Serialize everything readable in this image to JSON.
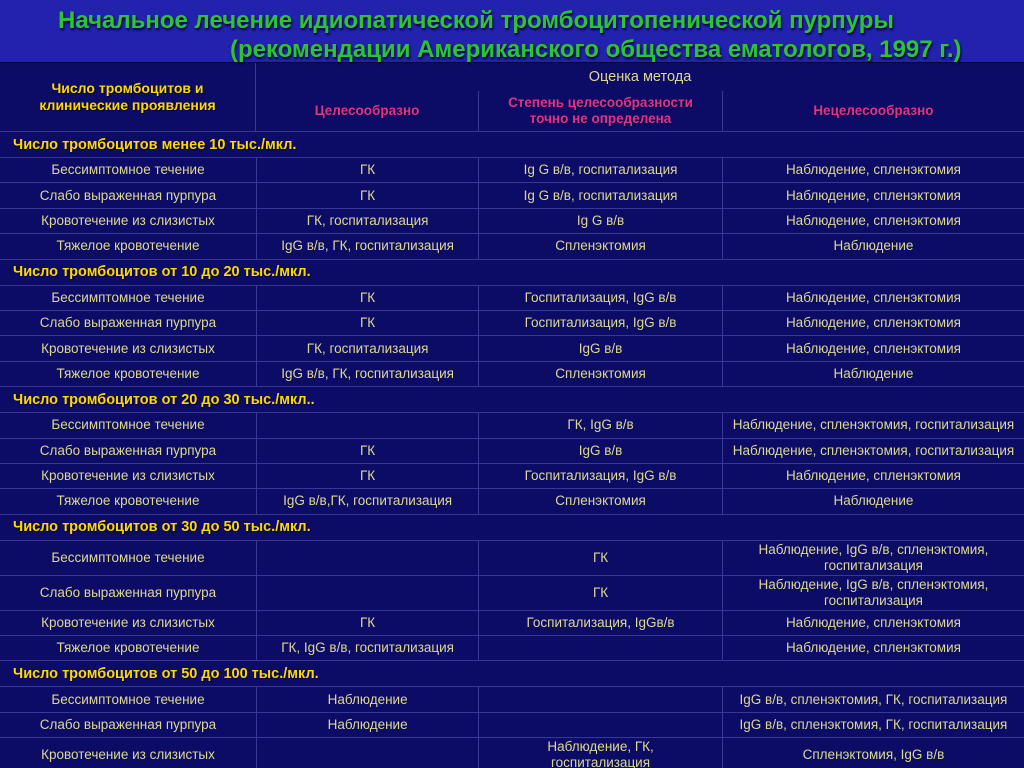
{
  "slide": {
    "title_line1": "Начальное лечение идиопатической тромбоцитопенической пурпуры",
    "title_line2": "(рекомендации Американского общества ематологов, 1997 г.)"
  },
  "table": {
    "corner_header": "Число тромбоцитов и\nклинические проявления",
    "group_header": "Оценка метода",
    "column_headers": [
      "Целесообразно",
      "Степень целесообразности\nточно не определена",
      "Нецелесообразно"
    ],
    "sections": [
      {
        "header": "Число тромбоцитов менее 10 тыс./мкл.",
        "rows": [
          {
            "cells": [
              "Бессимптомное течение",
              "ГК",
              "Ig G в/в, госпитализация",
              "Наблюдение, спленэктомия"
            ]
          },
          {
            "cells": [
              "Слабо выраженная пурпура",
              "ГК",
              "Ig G в/в, госпитализация",
              "Наблюдение, спленэктомия"
            ]
          },
          {
            "cells": [
              "Кровотечение из слизистых",
              "ГК, госпитализация",
              "Ig G в/в",
              "Наблюдение, спленэктомия"
            ]
          },
          {
            "cells": [
              "Тяжелое кровотечение",
              "IgG в/в, ГК, госпитализация",
              "Спленэктомия",
              "Наблюдение"
            ]
          }
        ]
      },
      {
        "header": "Число тромбоцитов от 10 до 20 тыс./мкл.",
        "rows": [
          {
            "cells": [
              "Бессимптомное течение",
              "ГК",
              "Госпитализация, IgG в/в",
              "Наблюдение, спленэктомия"
            ]
          },
          {
            "cells": [
              "Слабо выраженная пурпура",
              "ГК",
              "Госпитализация, IgG в/в",
              "Наблюдение, спленэктомия"
            ]
          },
          {
            "cells": [
              "Кровотечение из слизистых",
              "ГК, госпитализация",
              "IgG в/в",
              "Наблюдение, спленэктомия"
            ]
          },
          {
            "cells": [
              "Тяжелое кровотечение",
              "IgG в/в, ГК, госпитализация",
              "Спленэктомия",
              "Наблюдение"
            ]
          }
        ]
      },
      {
        "header": "Число тромбоцитов от 20 до 30 тыс./мкл..",
        "rows": [
          {
            "cells": [
              "Бессимптомное течение",
              "",
              "ГК, IgG в/в",
              "Наблюдение, спленэктомия, госпитализация"
            ]
          },
          {
            "cells": [
              "Слабо выраженная пурпура",
              "ГК",
              "IgG в/в",
              "Наблюдение, спленэктомия, госпитализация"
            ]
          },
          {
            "cells": [
              "Кровотечение из слизистых",
              "ГК",
              "Госпитализация, IgG в/в",
              "Наблюдение, спленэктомия"
            ]
          },
          {
            "cells": [
              "Тяжелое кровотечение",
              "IgG в/в,ГК, госпитализация",
              "Спленэктомия",
              "Наблюдение"
            ]
          }
        ]
      },
      {
        "header": "Число тромбоцитов от 30 до 50 тыс./мкл.",
        "rows": [
          {
            "cells": [
              "Бессимптомное течение",
              "",
              "ГК",
              "Наблюдение, IgG в/в, спленэктомия,\nгоспитализация"
            ]
          },
          {
            "cells": [
              "Слабо выраженная пурпура",
              "",
              "ГК",
              "Наблюдение, IgG в/в, спленэктомия,\nгоспитализация"
            ]
          },
          {
            "cells": [
              "Кровотечение из слизистых",
              "ГК",
              "Госпитализация, IgGв/в",
              "Наблюдение, спленэктомия"
            ]
          },
          {
            "cells": [
              "Тяжелое кровотечение",
              "ГК, IgG в/в, госпитализация",
              "",
              "Наблюдение, спленэктомия"
            ]
          }
        ]
      },
      {
        "header": "Число тромбоцитов от 50 до 100 тыс./мкл.",
        "rows": [
          {
            "cells": [
              "Бессимптомное течение",
              "Наблюдение",
              "",
              "IgG в/в, спленэктомия, ГК, госпитализация"
            ]
          },
          {
            "cells": [
              "Слабо выраженная пурпура",
              "Наблюдение",
              "",
              "IgG в/в, спленэктомия, ГК, госпитализация"
            ]
          },
          {
            "cells": [
              "Кровотечение из слизистых",
              "",
              "Наблюдение, ГК,\nгоспитализация",
              "Спленэктомия, IgG в/в"
            ]
          }
        ]
      }
    ]
  },
  "colors": {
    "background": "#0c0c66",
    "title_background": "#2222ae",
    "title_text": "#2fc42f",
    "section_header_text": "#ffd800",
    "column_header_text": "#e93186",
    "cell_text": "#ddd890"
  }
}
